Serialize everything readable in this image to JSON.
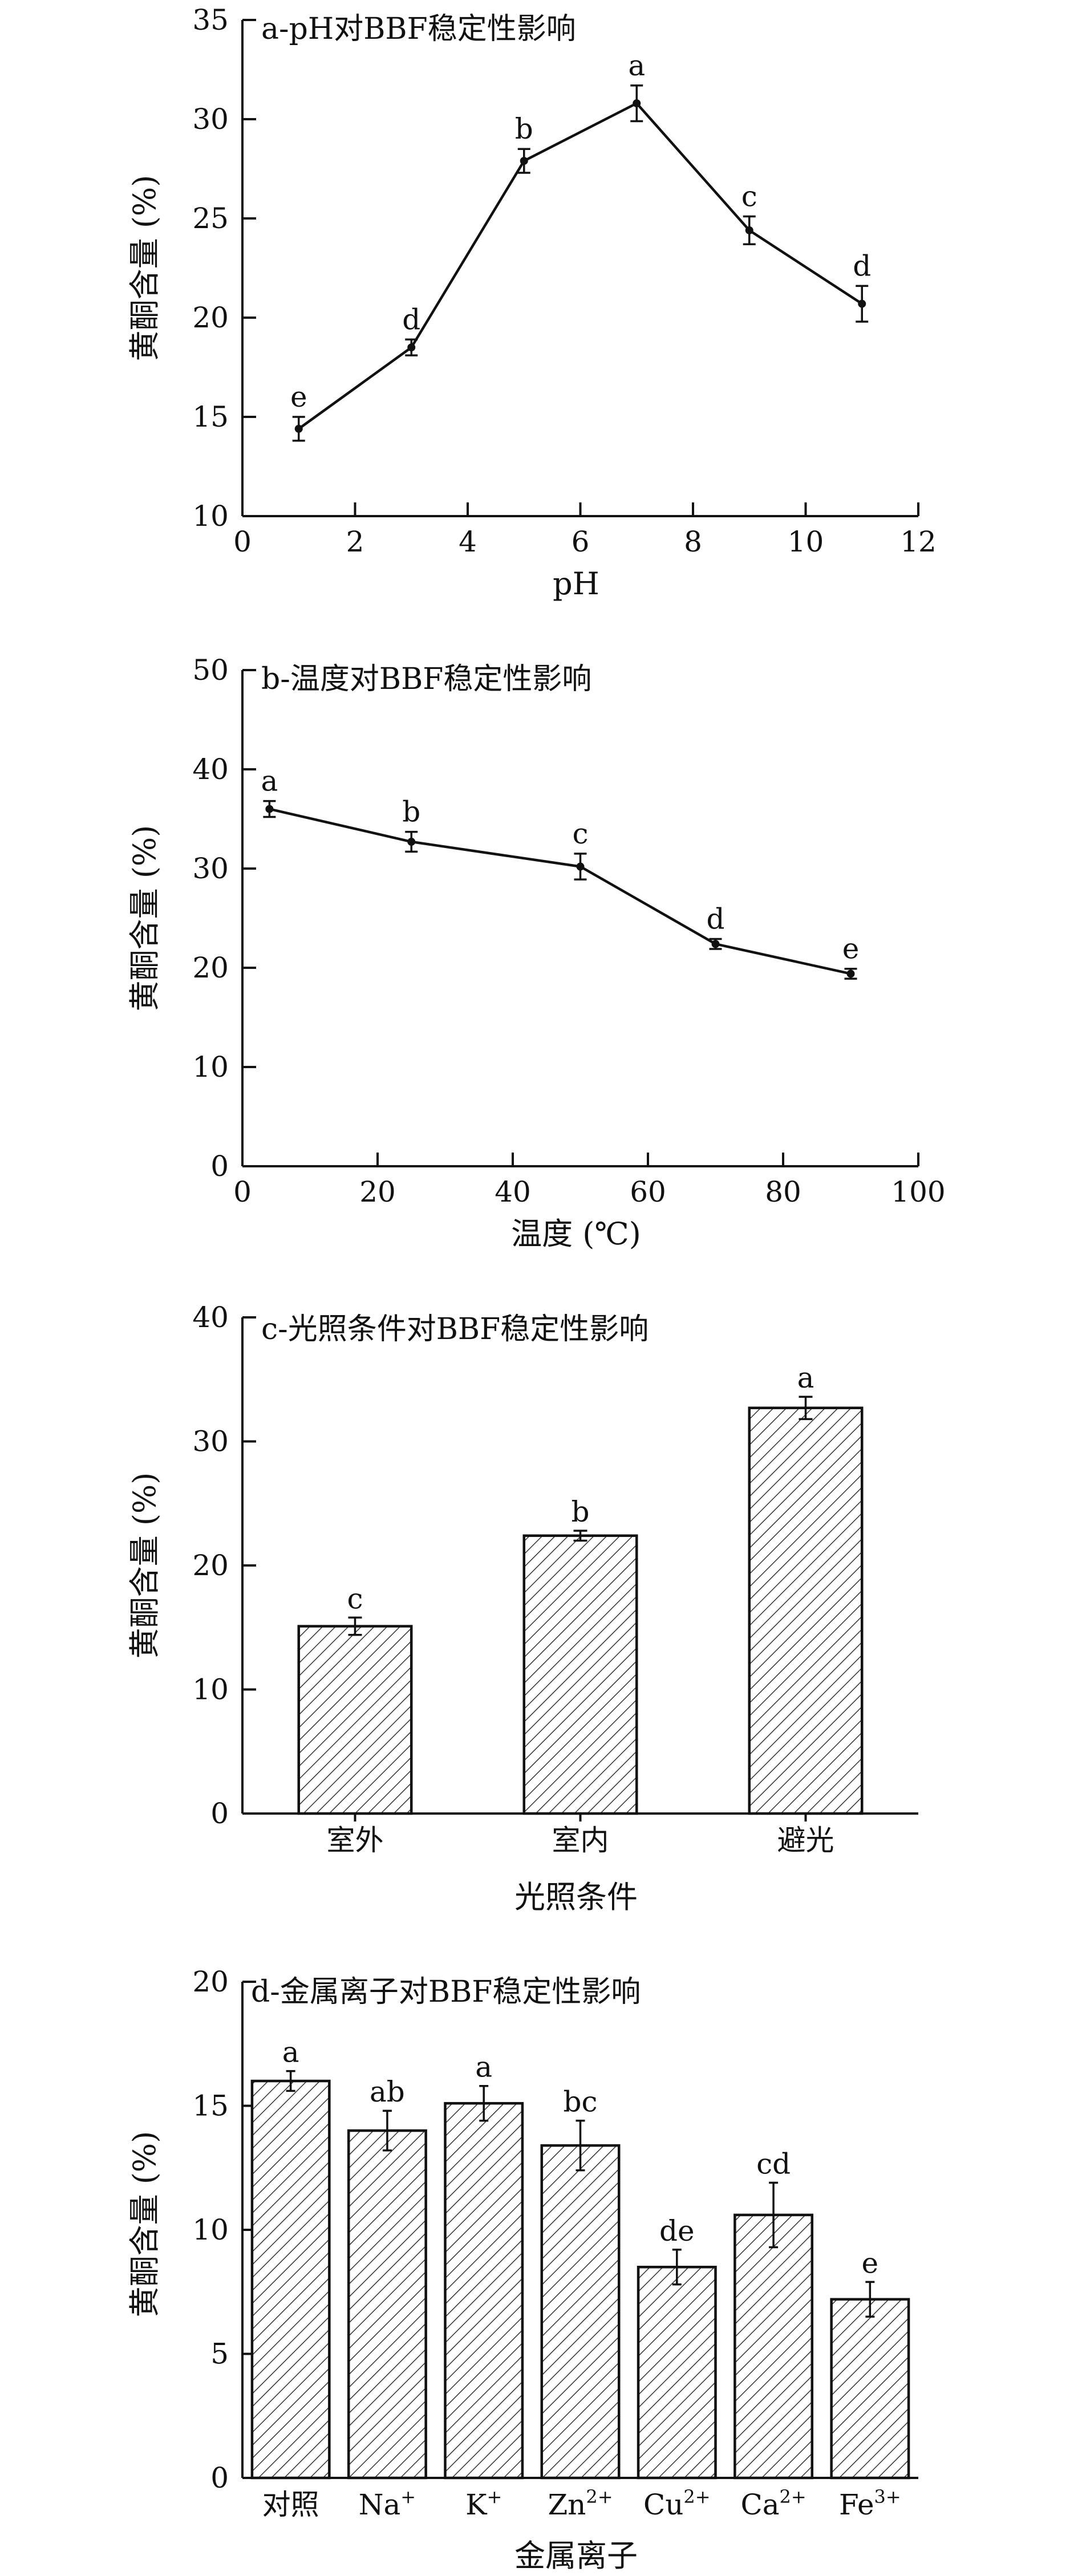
{
  "chart_data": [
    {
      "type": "line",
      "title": "a-pH对BBF稳定性影响",
      "xlabel": "pH",
      "ylabel": "黄酮含量 (%)",
      "xlim": [
        0,
        12
      ],
      "ylim": [
        10,
        35
      ],
      "xticks": [
        "0",
        "2",
        "4",
        "6",
        "8",
        "10",
        "12"
      ],
      "yticks": [
        "10",
        "15",
        "20",
        "25",
        "30",
        "35"
      ],
      "grid": false,
      "series": [
        {
          "x": [
            1,
            3,
            5,
            7,
            9,
            11
          ],
          "values": [
            14.4,
            18.5,
            27.9,
            30.8,
            24.4,
            20.7
          ],
          "errors": [
            0.6,
            0.4,
            0.6,
            0.9,
            0.7,
            0.9
          ],
          "letters": [
            "e",
            "d",
            "b",
            "a",
            "c",
            "d"
          ]
        }
      ]
    },
    {
      "type": "line",
      "title": "b-温度对BBF稳定性影响",
      "xlabel": "温度 (℃)",
      "ylabel": "黄酮含量 (%)",
      "xlim": [
        0,
        100
      ],
      "ylim": [
        0,
        50
      ],
      "xticks": [
        "0",
        "20",
        "40",
        "60",
        "80",
        "100"
      ],
      "yticks": [
        "0",
        "10",
        "20",
        "30",
        "40",
        "50"
      ],
      "grid": false,
      "series": [
        {
          "x": [
            4,
            25,
            50,
            70,
            90
          ],
          "values": [
            36.0,
            32.7,
            30.2,
            22.4,
            19.4
          ],
          "errors": [
            0.8,
            1.0,
            1.3,
            0.5,
            0.5
          ],
          "letters": [
            "a",
            "b",
            "c",
            "d",
            "e"
          ]
        }
      ]
    },
    {
      "type": "bar",
      "title": "c-光照条件对BBF稳定性影响",
      "xlabel": "光照条件",
      "ylabel": "黄酮含量 (%)",
      "ylim": [
        0,
        40
      ],
      "yticks": [
        "0",
        "10",
        "20",
        "30",
        "40"
      ],
      "categories": [
        "室外",
        "室内",
        "避光"
      ],
      "grid": false,
      "series": [
        {
          "values": [
            15.1,
            22.4,
            32.7
          ],
          "errors": [
            0.7,
            0.4,
            0.9
          ],
          "letters": [
            "c",
            "b",
            "a"
          ]
        }
      ]
    },
    {
      "type": "bar",
      "title": "d-金属离子对BBF稳定性影响",
      "xlabel": "金属离子",
      "ylabel": "黄酮含量 (%)",
      "ylim": [
        0,
        20
      ],
      "yticks": [
        "0",
        "5",
        "10",
        "15",
        "20"
      ],
      "categories": [
        {
          "base": "对照",
          "sup": ""
        },
        {
          "base": "Na",
          "sup": "+"
        },
        {
          "base": "K",
          "sup": "+"
        },
        {
          "base": "Zn",
          "sup": "2+"
        },
        {
          "base": "Cu",
          "sup": "2+"
        },
        {
          "base": "Ca",
          "sup": "2+"
        },
        {
          "base": "Fe",
          "sup": "3+"
        }
      ],
      "grid": false,
      "series": [
        {
          "values": [
            16.0,
            14.0,
            15.1,
            13.4,
            8.5,
            10.6,
            7.2
          ],
          "errors": [
            0.4,
            0.8,
            0.7,
            1.0,
            0.7,
            1.3,
            0.7
          ],
          "letters": [
            "a",
            "ab",
            "a",
            "bc",
            "de",
            "cd",
            "e"
          ]
        }
      ]
    }
  ]
}
